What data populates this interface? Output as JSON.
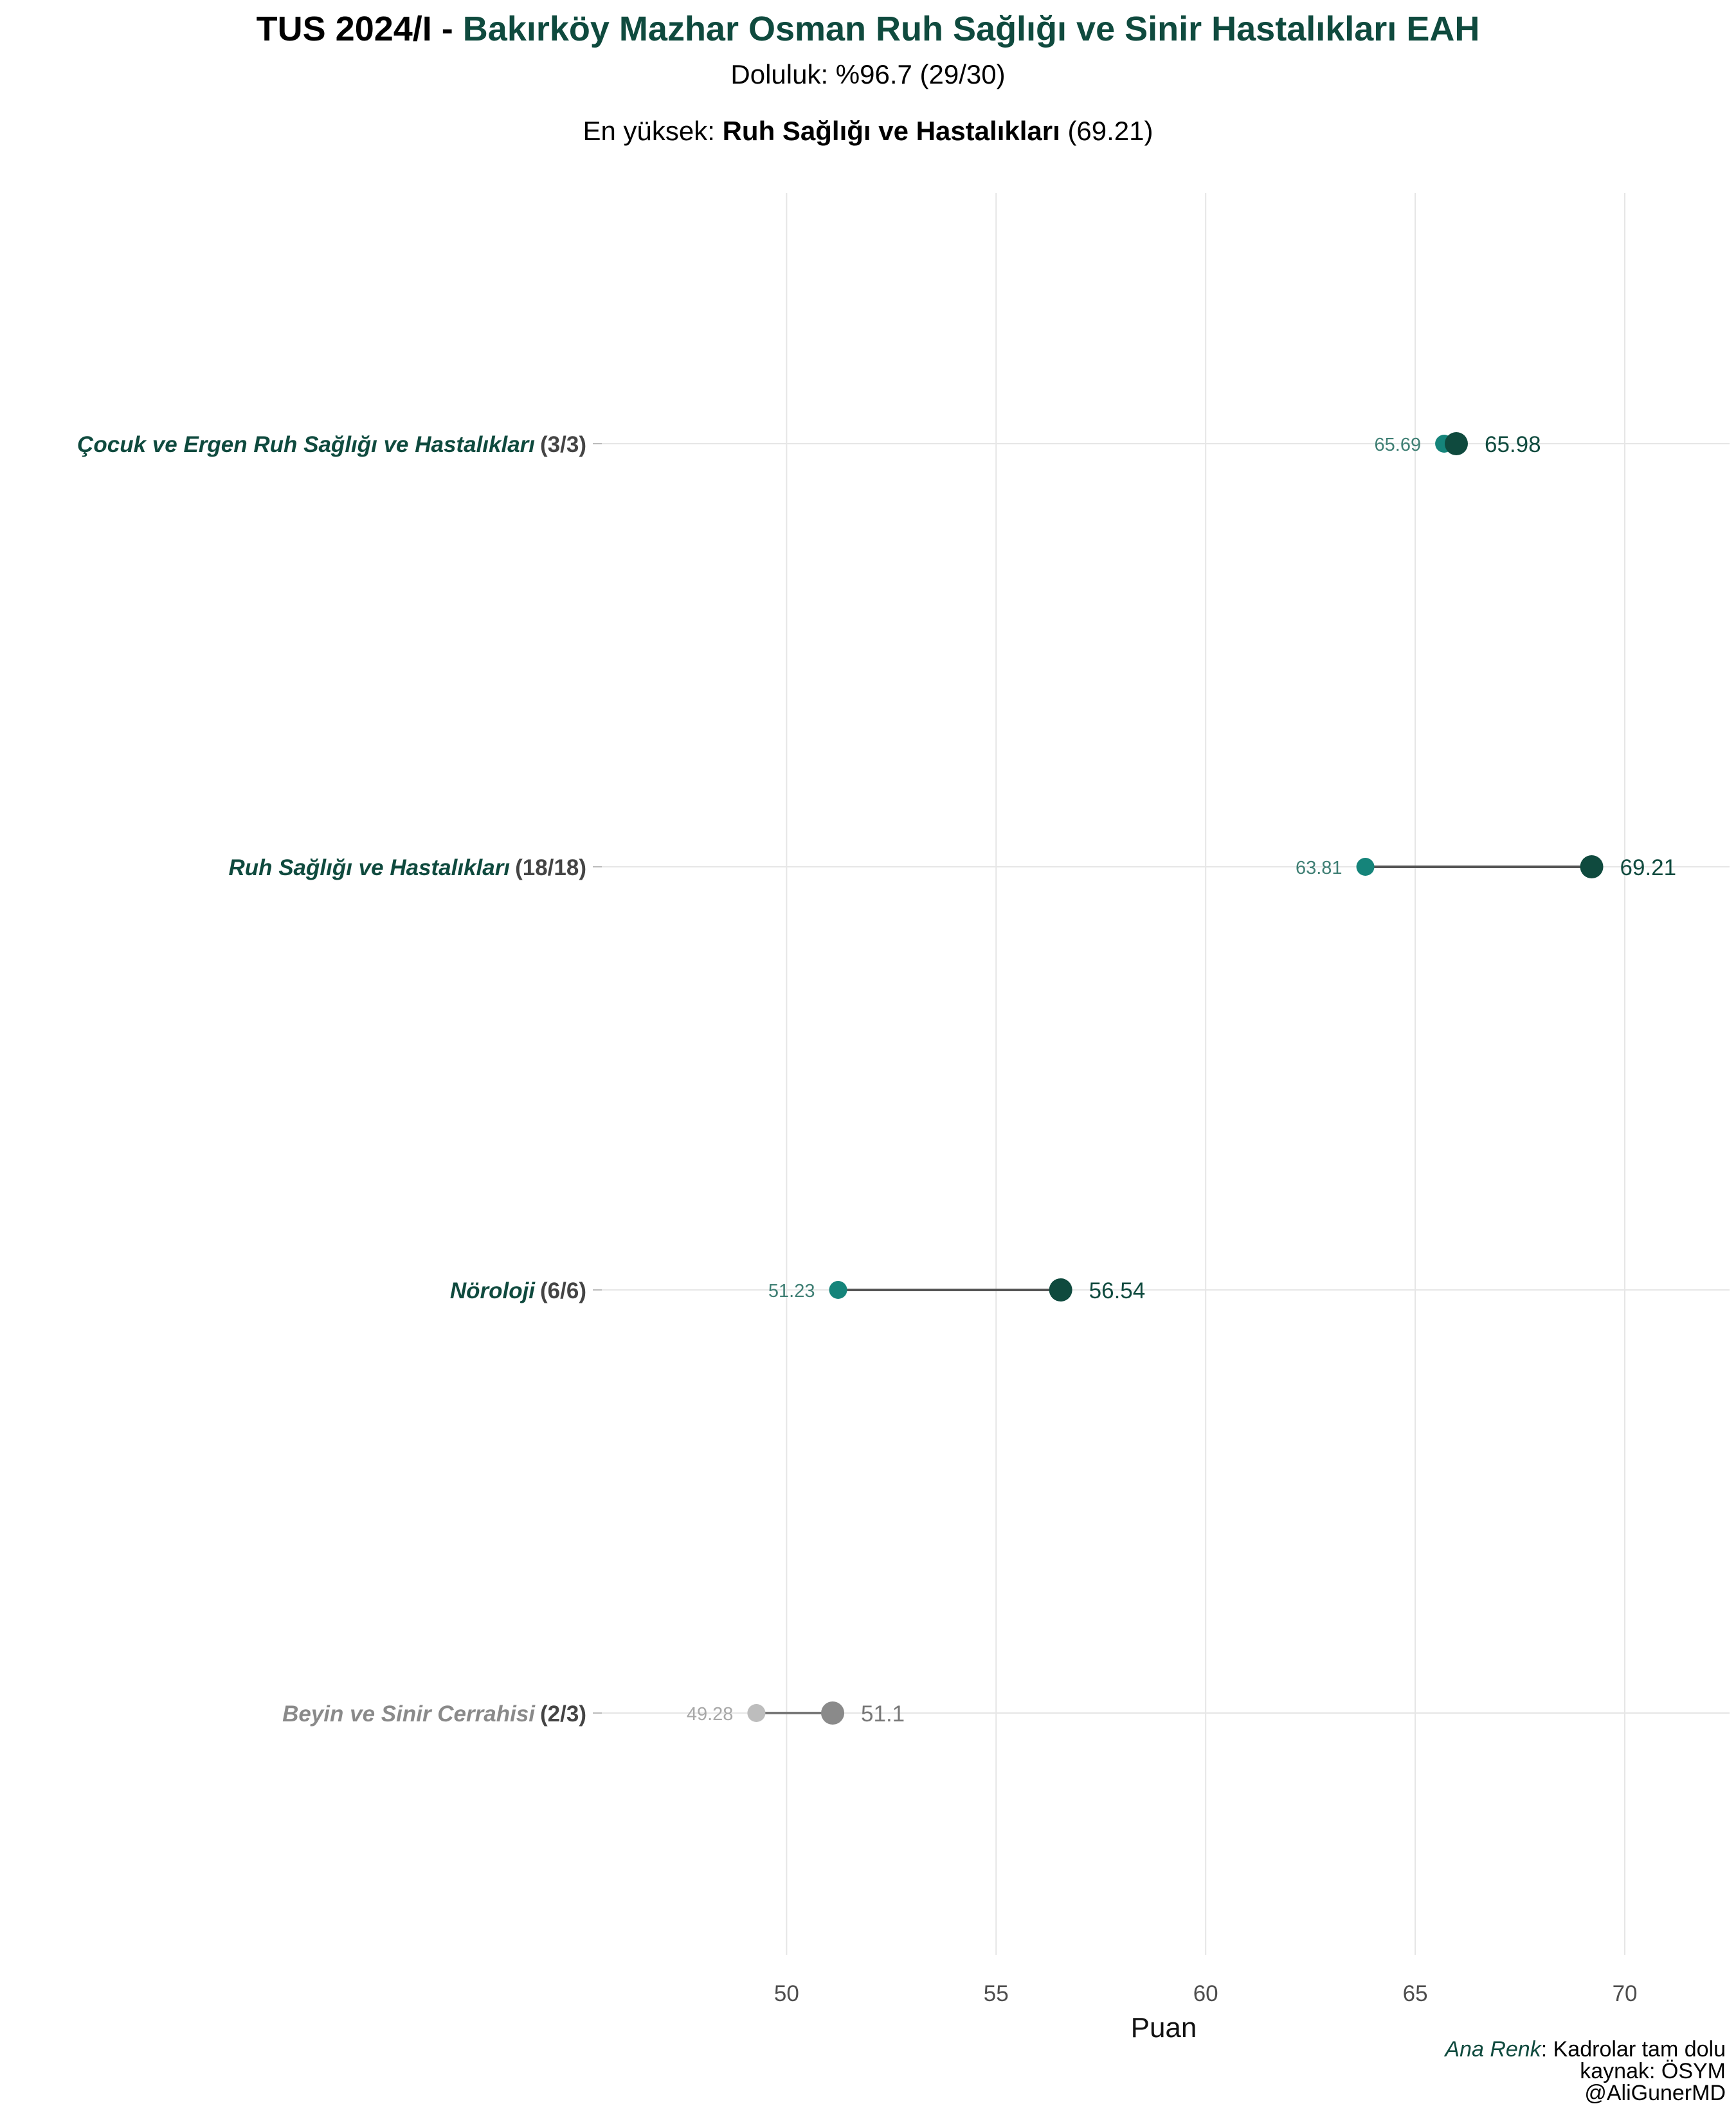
{
  "header": {
    "title_prefix": "TUS 2024/I - ",
    "title_institution": "Bakırköy Mazhar Osman Ruh Sağlığı ve Sinir Hastalıkları EAH",
    "subtitle": "Doluluk: %96.7 (29/30)",
    "highlight_prefix": "En yüksek: ",
    "highlight_name": "Ruh Sağlığı ve Hastalıkları",
    "highlight_value": "(69.21)"
  },
  "caption": {
    "legend_key": "Ana Renk",
    "legend_text": ": Kadrolar tam dolu",
    "source": "kaynak: ÖSYM",
    "author": "@AliGunerMD"
  },
  "colors": {
    "accent": "#0f4a3e",
    "accent_light": "#15847a",
    "muted": "#8a8a8a",
    "muted_light": "#bdbdbd",
    "connector": "#555555",
    "grid": "#e6e6e6"
  },
  "chart_data": {
    "type": "dumbbell",
    "xlabel": "Puan",
    "xlim": [
      45.5,
      72.5
    ],
    "xticks": [
      50,
      55,
      60,
      65,
      70
    ],
    "grid": true,
    "rows": [
      {
        "name": "Çocuk ve Ergen Ruh Sağlığı ve Hastalıkları",
        "count": "(3/3)",
        "min": 65.69,
        "max": 65.98,
        "full": true
      },
      {
        "name": "Ruh Sağlığı ve Hastalıkları",
        "count": "(18/18)",
        "min": 63.81,
        "max": 69.21,
        "full": true
      },
      {
        "name": "Nöroloji",
        "count": "(6/6)",
        "min": 51.23,
        "max": 56.54,
        "full": true
      },
      {
        "name": "Beyin ve Sinir Cerrahisi",
        "count": "(2/3)",
        "min": 49.28,
        "max": 51.1,
        "full": false
      }
    ]
  }
}
